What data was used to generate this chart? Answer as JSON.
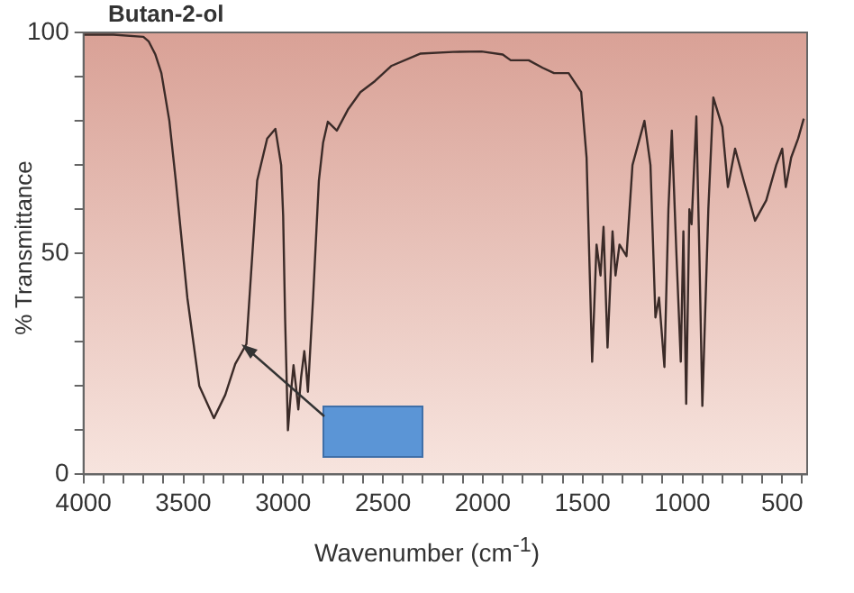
{
  "chart_data": {
    "type": "line",
    "title": "Butan-2-ol",
    "xlabel": "Wavenumber (cm$^{-1}$)",
    "ylabel": "% Transmittance",
    "x": [
      4000,
      3850,
      3700,
      3674,
      3640,
      3610,
      3570,
      3538,
      3480,
      3420,
      3347,
      3290,
      3240,
      3184,
      3130,
      3080,
      3039,
      3010,
      3000,
      2990,
      2976,
      2962,
      2948,
      2936,
      2924,
      2910,
      2894,
      2885,
      2876,
      2850,
      2821,
      2800,
      2776,
      2731,
      2676,
      2613,
      2540,
      2459,
      2314,
      2150,
      2006,
      1900,
      1860,
      1770,
      1700,
      1643,
      1570,
      1507,
      1480,
      1452,
      1430,
      1410,
      1395,
      1375,
      1350,
      1335,
      1315,
      1280,
      1250,
      1190,
      1160,
      1135,
      1117,
      1090,
      1070,
      1053,
      1030,
      1008,
      995,
      981,
      965,
      954,
      930,
      915,
      900,
      870,
      845,
      800,
      772,
      736,
      690,
      636,
      580,
      530,
      500,
      482,
      455,
      420,
      392
    ],
    "series": [
      {
        "color": "#3b2b28",
        "values": [
          99.5,
          99.5,
          99,
          98,
          95,
          90.8,
          80,
          66.6,
          40,
          20,
          12.7,
          18,
          25,
          29.5,
          66.5,
          76,
          78.2,
          70,
          58.6,
          35,
          10,
          18,
          24.7,
          20,
          14.7,
          22,
          27.9,
          24,
          18.7,
          40,
          66.5,
          75,
          79.8,
          77.8,
          82.5,
          86.5,
          89,
          92.4,
          95.2,
          95.6,
          95.7,
          95,
          93.7,
          93.7,
          92,
          90.8,
          90.8,
          86.5,
          71.7,
          25.5,
          52,
          45,
          56,
          28.7,
          55,
          45,
          52,
          49.4,
          70,
          80,
          70,
          35.5,
          40,
          24.3,
          60,
          77.8,
          50,
          25.5,
          55,
          16,
          60,
          56.6,
          81,
          50,
          15.5,
          60,
          85.3,
          78.6,
          65,
          73.7,
          66,
          57.4,
          62,
          70,
          73.7,
          65,
          71.7,
          76,
          80.5
        ]
      }
    ],
    "xlim": [
      4000,
      375
    ],
    "xticks": [
      4000,
      {
        "value": 3900,
        "label": null
      },
      {
        "value": 3800,
        "label": null
      },
      {
        "value": 3700,
        "label": null
      },
      {
        "value": 3600,
        "label": null
      },
      3500,
      {
        "value": 3400,
        "label": null
      },
      {
        "value": 3300,
        "label": null
      },
      {
        "value": 3200,
        "label": null
      },
      {
        "value": 3100,
        "label": null
      },
      3000,
      {
        "value": 2900,
        "label": null
      },
      {
        "value": 2800,
        "label": null
      },
      {
        "value": 2700,
        "label": null
      },
      {
        "value": 2600,
        "label": null
      },
      2500,
      {
        "value": 2400,
        "label": null
      },
      {
        "value": 2300,
        "label": null
      },
      {
        "value": 2200,
        "label": null
      },
      {
        "value": 2100,
        "label": null
      },
      2000,
      {
        "value": 1900,
        "label": null
      },
      {
        "value": 1800,
        "label": null
      },
      {
        "value": 1700,
        "label": null
      },
      {
        "value": 1600,
        "label": null
      },
      1500,
      {
        "value": 1400,
        "label": null
      },
      {
        "value": 1300,
        "label": null
      },
      {
        "value": 1200,
        "label": null
      },
      {
        "value": 1100,
        "label": null
      },
      1000,
      {
        "value": 900,
        "label": null
      },
      {
        "value": 800,
        "label": null
      },
      {
        "value": 700,
        "label": null
      },
      {
        "value": 600,
        "label": null
      },
      500,
      {
        "value": 400,
        "label": null
      }
    ],
    "ylim": [
      0,
      100
    ],
    "yticks": [
      0,
      {
        "value": 10,
        "label": null
      },
      {
        "value": 20,
        "label": null
      },
      {
        "value": 30,
        "label": null
      },
      {
        "value": 40,
        "label": null
      },
      50,
      {
        "value": 60,
        "label": null
      },
      {
        "value": 70,
        "label": null
      },
      {
        "value": 80,
        "label": null
      },
      {
        "value": 90,
        "label": null
      },
      100
    ],
    "grid": false,
    "legend": false,
    "marker": "none",
    "line_style": "solid"
  }
}
